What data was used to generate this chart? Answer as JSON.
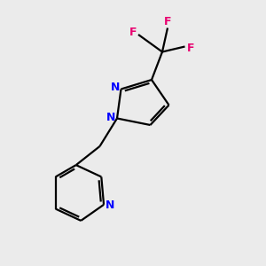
{
  "background_color": "#ebebeb",
  "bond_color": "#000000",
  "nitrogen_color": "#0000ff",
  "fluorine_color": "#e8006f",
  "line_width": 1.6,
  "figsize": [
    3.0,
    3.0
  ],
  "dpi": 100,
  "xlim": [
    0,
    10
  ],
  "ylim": [
    0,
    10
  ]
}
